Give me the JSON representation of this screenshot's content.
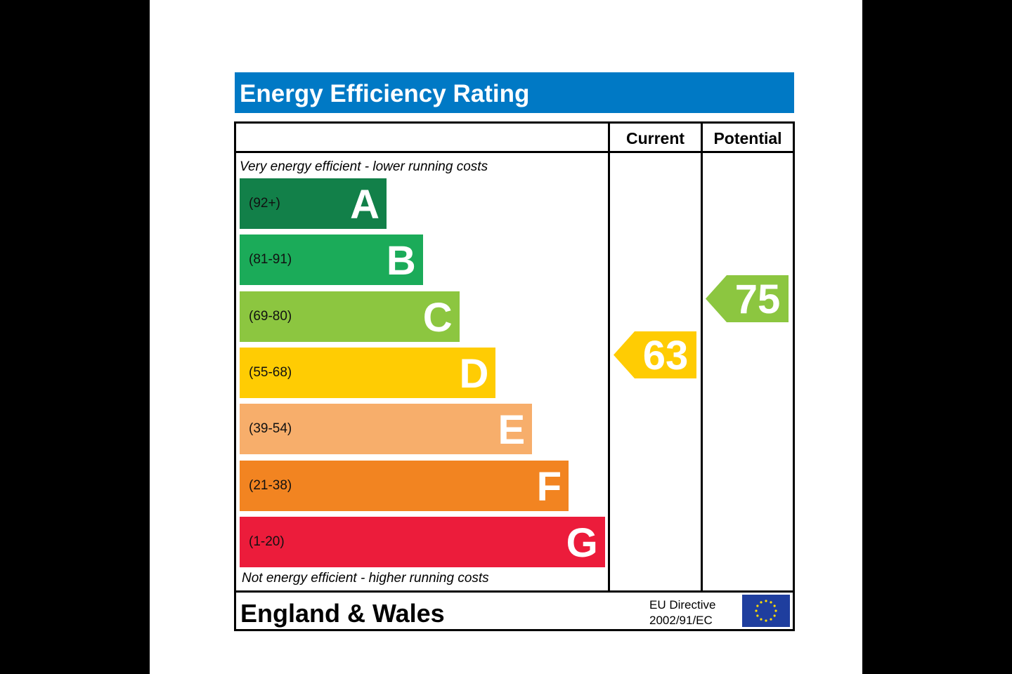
{
  "title": "Energy Efficiency Rating",
  "header": {
    "current_label": "Current",
    "potential_label": "Potential"
  },
  "captions": {
    "top": "Very energy efficient - lower running costs",
    "bottom": "Not energy efficient - higher running costs"
  },
  "footer": {
    "region": "England & Wales",
    "directive_line1": "EU Directive",
    "directive_line2": "2002/91/EC",
    "flag_icon": "eu-flag-icon"
  },
  "chart_data": {
    "type": "bar",
    "title": "Energy Efficiency Rating",
    "categories": [
      "A",
      "B",
      "C",
      "D",
      "E",
      "F",
      "G"
    ],
    "bands": [
      {
        "letter": "A",
        "range": "(92+)",
        "color": "#128049"
      },
      {
        "letter": "B",
        "range": "(81-91)",
        "color": "#1bab59"
      },
      {
        "letter": "C",
        "range": "(69-80)",
        "color": "#8cc640"
      },
      {
        "letter": "D",
        "range": "(55-68)",
        "color": "#ffcc03"
      },
      {
        "letter": "E",
        "range": "(39-54)",
        "color": "#f7ae6b"
      },
      {
        "letter": "F",
        "range": "(21-38)",
        "color": "#f28421"
      },
      {
        "letter": "G",
        "range": "(1-20)",
        "color": "#ec1c3b"
      }
    ],
    "current": {
      "label": "Current",
      "value": 63,
      "band": "D",
      "color": "#ffcc03"
    },
    "potential": {
      "label": "Potential",
      "value": 75,
      "band": "C",
      "color": "#8cc640"
    }
  }
}
